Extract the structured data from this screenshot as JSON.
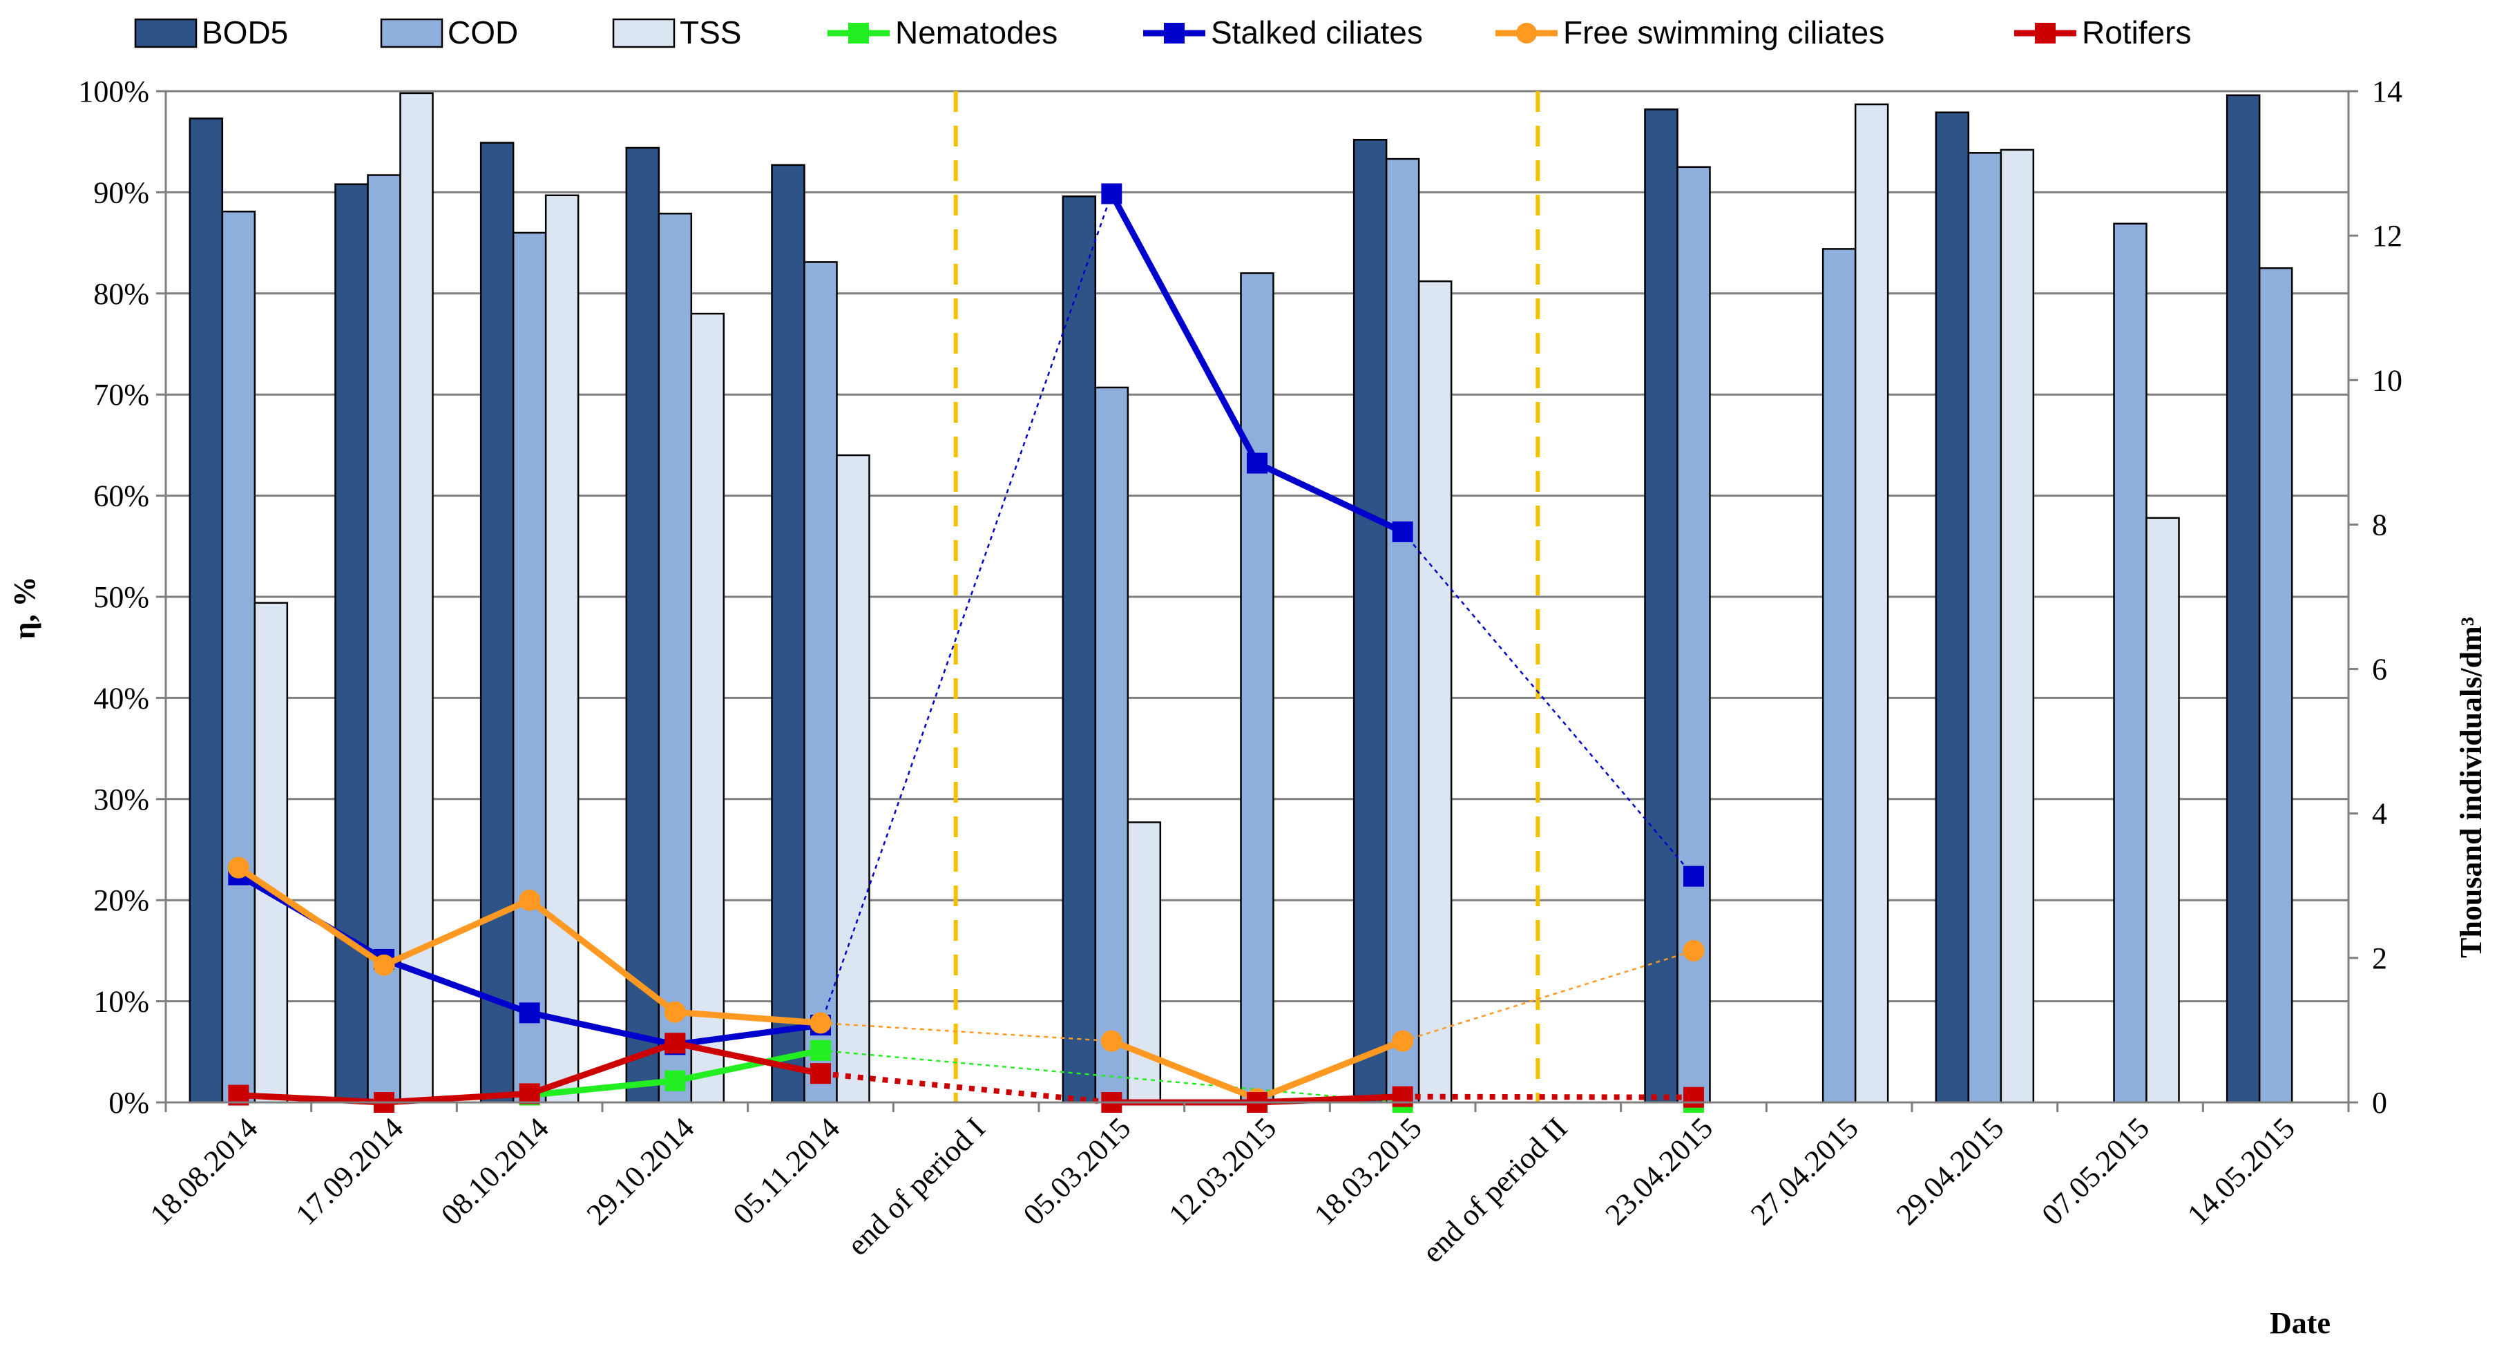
{
  "chart_data": {
    "type": "bar",
    "title": "",
    "xlabel": "Date",
    "ylabel": "η, %",
    "y2label": "Thousand individuals/dm³",
    "ylim": [
      0,
      100
    ],
    "y2lim": [
      0,
      14
    ],
    "y_ticks": [
      "0%",
      "10%",
      "20%",
      "30%",
      "40%",
      "50%",
      "60%",
      "70%",
      "80%",
      "90%",
      "100%"
    ],
    "y2_ticks": [
      "0",
      "2",
      "4",
      "6",
      "8",
      "10",
      "12",
      "14"
    ],
    "categories": [
      "18.08.2014",
      "17.09.2014",
      "08.10.2014",
      "29.10.2014",
      "05.11.2014",
      "end of period I",
      "05.03.2015",
      "12.03.2015",
      "18.03.2015",
      "end of period II",
      "23.04.2015",
      "27.04.2015",
      "29.04.2015",
      "07.05.2015",
      "14.05.2015"
    ],
    "period_markers": [
      "end of period I",
      "end of period II"
    ],
    "bar_series": [
      {
        "name": "BOD5",
        "color": "#2e5386",
        "values": [
          97.3,
          90.8,
          94.9,
          94.4,
          92.7,
          null,
          89.6,
          null,
          95.2,
          null,
          98.2,
          null,
          97.9,
          null,
          99.6
        ]
      },
      {
        "name": "COD",
        "color": "#8eaedb",
        "values": [
          88.1,
          91.7,
          86.0,
          87.9,
          83.1,
          null,
          70.7,
          82.0,
          93.3,
          null,
          92.5,
          84.4,
          93.9,
          86.9,
          82.5
        ]
      },
      {
        "name": "TSS",
        "color": "#dce6f2",
        "values": [
          49.4,
          99.8,
          89.7,
          78.0,
          64.0,
          null,
          27.7,
          null,
          81.2,
          null,
          null,
          98.7,
          94.2,
          57.8,
          null
        ]
      }
    ],
    "line_series": [
      {
        "name": "Nematodes",
        "color": "#22ee22",
        "marker": "square",
        "values": [
          null,
          null,
          0.1,
          0.3,
          0.72,
          null,
          null,
          null,
          0.0,
          null,
          0.0,
          null,
          null,
          null,
          null
        ]
      },
      {
        "name": "Stalked ciliates",
        "color": "#0000cc",
        "marker": "square",
        "values": [
          3.15,
          1.98,
          1.24,
          0.8,
          1.07,
          null,
          12.58,
          8.85,
          7.9,
          null,
          3.13,
          null,
          null,
          null,
          null
        ]
      },
      {
        "name": "Free swimming ciliates",
        "color": "#ff9922",
        "marker": "circle",
        "values": [
          3.25,
          1.9,
          2.8,
          1.25,
          1.1,
          null,
          0.85,
          0.05,
          0.85,
          null,
          2.1,
          null,
          null,
          null,
          null
        ]
      },
      {
        "name": "Rotifers",
        "color": "#cc0000",
        "marker": "square",
        "values": [
          0.1,
          0.0,
          0.12,
          0.82,
          0.4,
          null,
          0.0,
          0.0,
          0.08,
          null,
          0.07,
          null,
          null,
          null,
          null
        ]
      }
    ],
    "legend_position": "top"
  }
}
